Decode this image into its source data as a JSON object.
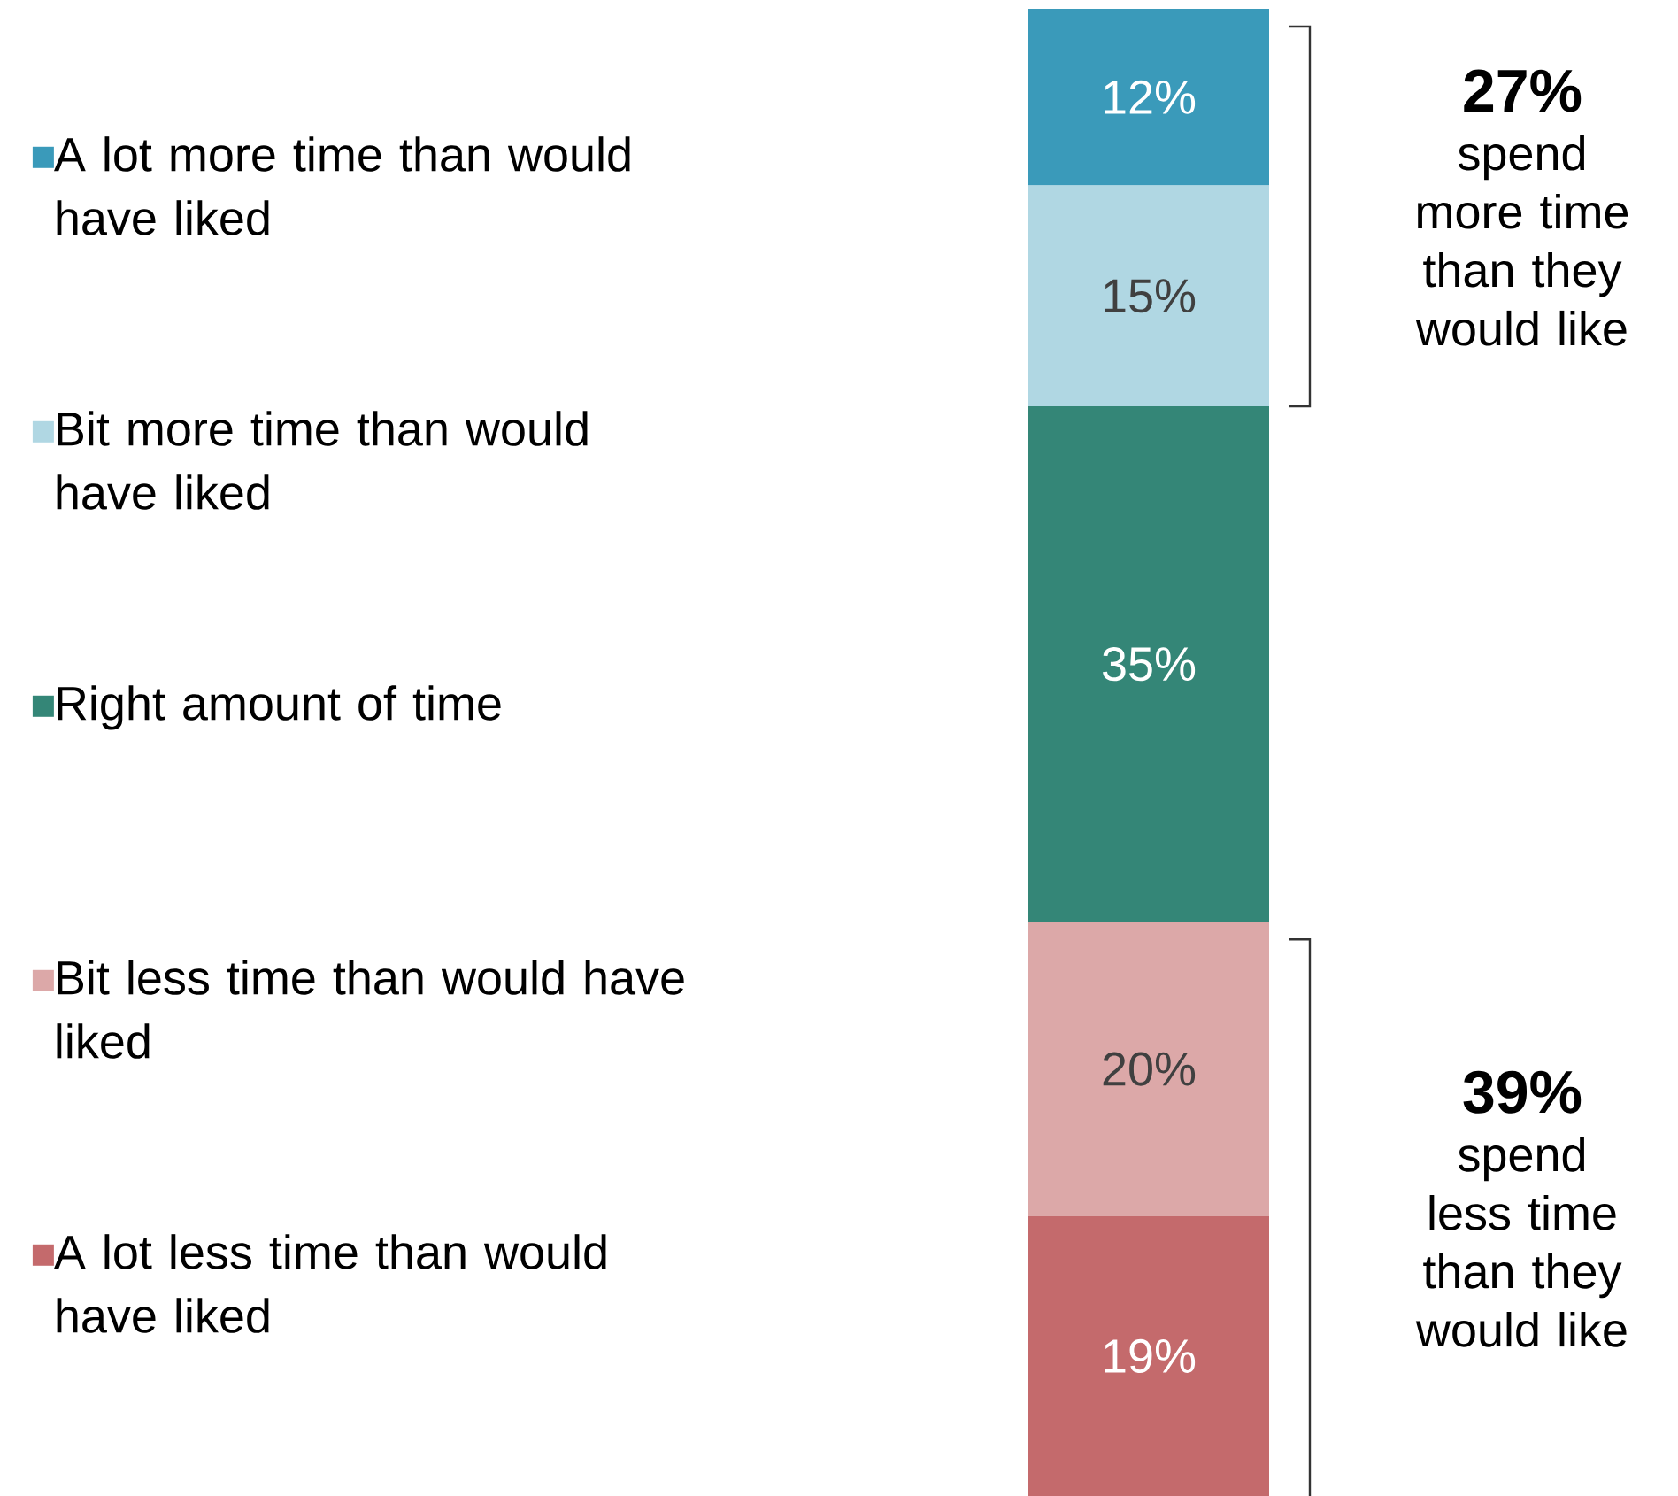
{
  "chart_data": {
    "type": "bar",
    "stacked": true,
    "categories": [
      null
    ],
    "legend": "left",
    "series": [
      {
        "name": "A lot less time than would have liked",
        "color": "#c46a6c",
        "values": [
          19
        ],
        "value_labels": [
          "19%"
        ]
      },
      {
        "name": "Bit less time than would have liked",
        "color": "#dca8a8",
        "values": [
          20
        ],
        "value_labels": [
          "20%"
        ]
      },
      {
        "name": "Right amount of time",
        "color": "#348677",
        "values": [
          35
        ],
        "value_labels": [
          "35%"
        ]
      },
      {
        "name": "Bit more time than would have liked",
        "color": "#b0d7e3",
        "values": [
          15
        ],
        "value_labels": [
          "15%"
        ]
      },
      {
        "name": "A lot more time than would have liked",
        "color": "#3a9aba",
        "values": [
          12
        ],
        "value_labels": [
          "12%"
        ]
      }
    ],
    "annotations": [
      "27%",
      "spend more time than they would like",
      "39%",
      "spend less time than they would like"
    ]
  }
}
